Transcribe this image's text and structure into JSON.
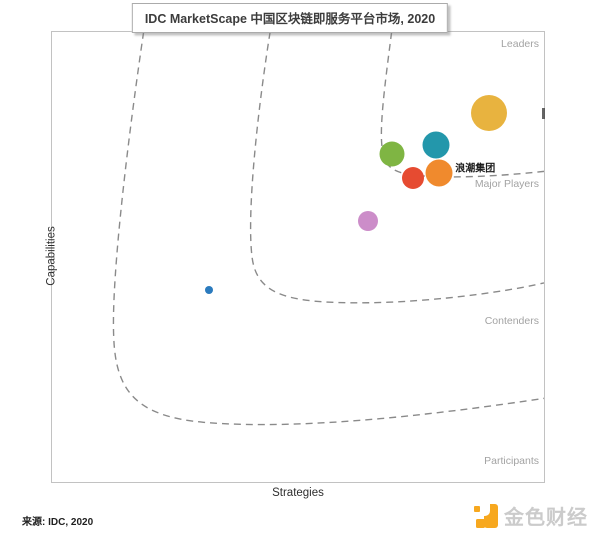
{
  "title": "IDC MarketScape 中国区块链即服务平台市场, 2020",
  "axes": {
    "x_label": "Strategies",
    "y_label": "Capabilities"
  },
  "regions": [
    {
      "label": "Leaders"
    },
    {
      "label": "Major Players"
    },
    {
      "label": "Contenders"
    },
    {
      "label": "Participants"
    }
  ],
  "source_note": "来源: IDC, 2020",
  "watermark": {
    "text": "金色财经",
    "icon": "jinse-logo",
    "icon_color": "#f7a81f",
    "text_color": "#cbcbcb"
  },
  "chart_data": {
    "type": "scatter",
    "title": "IDC MarketScape 中国区块链即服务平台市场, 2020",
    "xlabel": "Strategies",
    "ylabel": "Capabilities",
    "x_range": [
      0,
      100
    ],
    "y_range": [
      0,
      100
    ],
    "grid": false,
    "region_labels": [
      "Leaders",
      "Major Players",
      "Contenders",
      "Participants"
    ],
    "points": [
      {
        "name": "vendor-green",
        "label": "",
        "x": 68.8,
        "y": 73.0,
        "r": 12.5,
        "color": "#7FB543"
      },
      {
        "name": "vendor-teal",
        "label": "",
        "x": 77.7,
        "y": 75.0,
        "r": 13.5,
        "color": "#2397AB"
      },
      {
        "name": "vendor-yellow",
        "label": "",
        "x": 88.5,
        "y": 82.1,
        "r": 18,
        "color": "#E8B33F"
      },
      {
        "name": "vendor-pink",
        "label": "",
        "x": 64.0,
        "y": 58.2,
        "r": 10,
        "color": "#CC8DC9"
      },
      {
        "name": "vendor-blue",
        "label": "",
        "x": 31.8,
        "y": 42.9,
        "r": 4,
        "color": "#2B7BBE"
      },
      {
        "name": "vendor-red",
        "label": "",
        "x": 73.1,
        "y": 67.7,
        "r": 11,
        "color": "#E64B31"
      },
      {
        "name": "inspur-group",
        "label": "浪潮集团",
        "x": 78.3,
        "y": 68.8,
        "r": 13.5,
        "color": "#F08A2D"
      }
    ]
  }
}
